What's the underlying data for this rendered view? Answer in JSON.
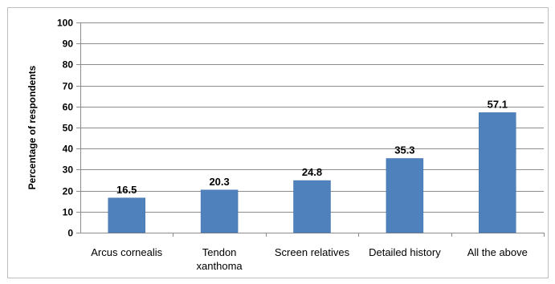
{
  "chart_data": {
    "type": "bar",
    "title": "",
    "xlabel": "",
    "ylabel": "Percentage of respondents",
    "ylim": [
      0,
      100
    ],
    "yticks": [
      0,
      10,
      20,
      30,
      40,
      50,
      60,
      70,
      80,
      90,
      100
    ],
    "grid": true,
    "legend": "none",
    "categories": [
      [
        "Arcus cornealis"
      ],
      [
        "Tendon",
        "xanthoma"
      ],
      [
        "Screen relatives"
      ],
      [
        "Detailed history"
      ],
      [
        "All the above"
      ]
    ],
    "values": [
      16.5,
      20.3,
      24.8,
      35.3,
      57.1
    ],
    "value_labels": [
      "16.5",
      "20.3",
      "24.8",
      "35.3",
      "57.1"
    ],
    "colors": {
      "bar": "#4f81bd",
      "bar_edge": "#3f6fa8",
      "grid": "#8c8c8c",
      "axis": "#8c8c8c",
      "frame": "#bdbdbd"
    }
  }
}
